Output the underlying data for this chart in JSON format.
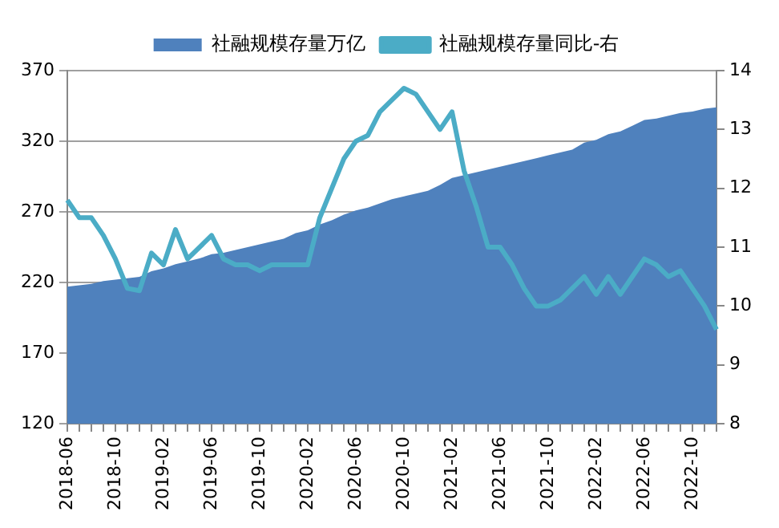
{
  "chart_data": {
    "type": "area",
    "categories": [
      "2018-06",
      null,
      null,
      null,
      "2018-10",
      null,
      null,
      null,
      "2019-02",
      null,
      null,
      null,
      "2019-06",
      null,
      null,
      null,
      "2019-10",
      null,
      null,
      null,
      "2020-02",
      null,
      null,
      null,
      "2020-06",
      null,
      null,
      null,
      "2020-10",
      null,
      null,
      null,
      "2021-02",
      null,
      null,
      null,
      "2021-06",
      null,
      null,
      null,
      "2021-10",
      null,
      null,
      null,
      "2022-02",
      null,
      null,
      null,
      "2022-06",
      null,
      null,
      null,
      "2022-10",
      null,
      null
    ],
    "series": [
      {
        "name": "社融规模存量万亿",
        "color": "#4f81bd",
        "values": [
          217,
          218,
          219,
          221,
          222,
          223,
          224,
          228,
          230,
          233,
          235,
          237,
          240,
          241,
          243,
          245,
          247,
          249,
          251,
          255,
          257,
          261,
          264,
          268,
          271,
          273,
          276,
          279,
          281,
          283,
          285,
          289,
          294,
          296,
          298,
          300,
          302,
          304,
          306,
          308,
          310,
          312,
          314,
          319,
          321,
          325,
          327,
          331,
          335,
          336,
          338,
          340,
          341,
          343,
          344
        ]
      },
      {
        "name": "社融规模存量同比-右",
        "type": "line",
        "axis": "y2",
        "color": "#4bacc6",
        "values": [
          11.8,
          11.5,
          11.5,
          11.2,
          10.8,
          10.3,
          10.26,
          10.9,
          10.7,
          11.3,
          10.8,
          11.0,
          11.2,
          10.8,
          10.7,
          10.7,
          10.6,
          10.7,
          10.7,
          10.7,
          10.7,
          11.5,
          12.0,
          12.5,
          12.8,
          12.9,
          13.3,
          13.5,
          13.7,
          13.6,
          13.3,
          13.0,
          13.3,
          12.3,
          11.7,
          11.0,
          11.0,
          10.7,
          10.3,
          10.0,
          10.0,
          10.1,
          10.3,
          10.5,
          10.2,
          10.5,
          10.2,
          10.5,
          10.8,
          10.7,
          10.5,
          10.6,
          10.3,
          10.0,
          9.6
        ]
      }
    ],
    "ylim": [
      120,
      370
    ],
    "yticks": [
      120,
      170,
      220,
      270,
      320,
      370
    ],
    "y2lim": [
      8,
      14
    ],
    "y2ticks": [
      8,
      9,
      10,
      11,
      12,
      13,
      14
    ],
    "grid": "y",
    "legend": "top",
    "marker": "none",
    "line_style": "solid"
  }
}
